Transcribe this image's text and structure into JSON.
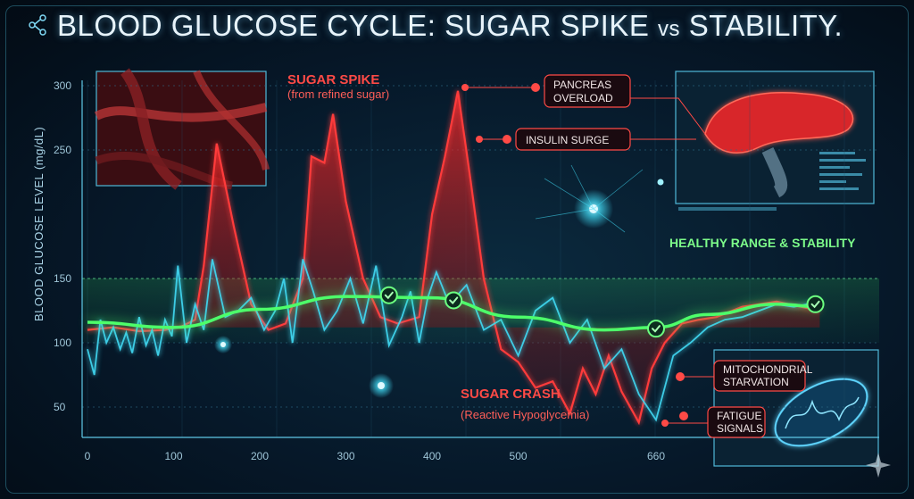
{
  "title": {
    "main": "BLOOD GLUCOSE CYCLE: SUGAR SPIKE",
    "vs": "vs",
    "end": "STABILITY."
  },
  "chart_data": {
    "type": "line",
    "ylabel": "BLOOD GLUCOSE LEVEL (mg/dL)",
    "xlabel": "",
    "yticks": [
      300,
      250,
      150,
      100,
      50
    ],
    "xticks": [
      "0",
      "100",
      "200",
      "300",
      "400",
      "500",
      "660"
    ],
    "ylim": [
      30,
      310
    ],
    "xlim": [
      -5,
      850
    ],
    "healthy_band": [
      100,
      150
    ],
    "grid": true,
    "series": [
      {
        "name": "",
        "color": "#ff3b3b",
        "x": [
          0,
          30,
          60,
          90,
          110,
          125,
          135,
          150,
          170,
          190,
          210,
          230,
          250,
          260,
          275,
          285,
          300,
          320,
          340,
          360,
          385,
          400,
          415,
          430,
          445,
          460,
          480,
          500,
          520,
          540,
          560,
          575,
          590,
          605,
          620,
          640,
          655,
          670,
          690,
          710,
          730,
          760,
          800,
          850
        ],
        "y": [
          110,
          112,
          109,
          110,
          113,
          118,
          160,
          255,
          190,
          130,
          110,
          115,
          150,
          245,
          240,
          278,
          210,
          150,
          120,
          115,
          120,
          200,
          245,
          296,
          225,
          150,
          95,
          85,
          65,
          70,
          45,
          80,
          60,
          90,
          62,
          38,
          80,
          100,
          115,
          118,
          120,
          128,
          132,
          125
        ]
      },
      {
        "name": "",
        "color": "#3fd6f0",
        "x": [
          0,
          8,
          15,
          22,
          30,
          38,
          45,
          52,
          60,
          68,
          75,
          82,
          90,
          98,
          105,
          115,
          125,
          135,
          145,
          160,
          175,
          190,
          205,
          218,
          228,
          238,
          250,
          262,
          275,
          290,
          305,
          320,
          335,
          350,
          365,
          375,
          385,
          395,
          405,
          420,
          440,
          460,
          480,
          500,
          520,
          540,
          560,
          580,
          600,
          620,
          640,
          660,
          680,
          700,
          720,
          740,
          760,
          780,
          800,
          820,
          850
        ],
        "y": [
          95,
          75,
          118,
          100,
          112,
          95,
          108,
          92,
          120,
          98,
          110,
          90,
          118,
          105,
          160,
          100,
          130,
          110,
          165,
          120,
          125,
          135,
          110,
          125,
          150,
          100,
          165,
          140,
          110,
          125,
          150,
          115,
          160,
          98,
          120,
          140,
          100,
          135,
          155,
          130,
          145,
          110,
          118,
          90,
          125,
          135,
          100,
          118,
          80,
          95,
          60,
          40,
          90,
          100,
          112,
          118,
          120,
          125,
          130,
          128,
          132
        ]
      },
      {
        "name": "",
        "color": "#4dff6a",
        "x": [
          0,
          100,
          200,
          300,
          400,
          500,
          600,
          660,
          720,
          800,
          850
        ],
        "y": [
          116,
          112,
          126,
          136,
          135,
          120,
          110,
          112,
          122,
          130,
          128
        ]
      }
    ],
    "checkpoints": [
      {
        "x": 350,
        "y": 137
      },
      {
        "x": 425,
        "y": 133
      },
      {
        "x": 660,
        "y": 111
      },
      {
        "x": 845,
        "y": 130
      }
    ]
  },
  "annotations": {
    "spike_title": "SUGAR SPIKE",
    "spike_sub": "(from refined sugar)",
    "crash_title": "SUGAR CRASH",
    "crash_sub": "(Reactive Hypoglycemia)",
    "healthy": "HEALTHY RANGE & STABILITY",
    "pancreas_1": "PANCREAS",
    "pancreas_2": "OVERLOAD",
    "insulin": "INSULIN SURGE",
    "mito_1": "MITOCHONDRIAL",
    "mito_2": "STARVATION",
    "fatigue_1": "FATIGUE",
    "fatigue_2": "SIGNALS"
  },
  "colors": {
    "spike": "#ff3b3b",
    "stable": "#4dff6a",
    "volatile": "#3fd6f0",
    "accent": "#56d4ff"
  },
  "icons": [
    "network-logo-icon",
    "sparkle-icon",
    "checkmark-icon"
  ]
}
